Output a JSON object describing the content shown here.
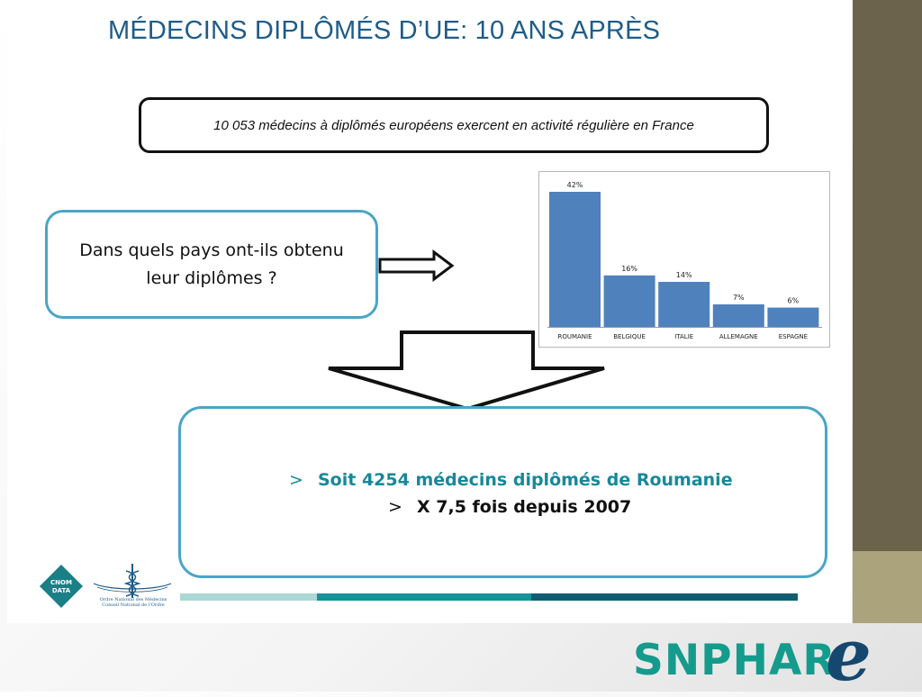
{
  "slide": {
    "title": "MÉDECINS DIPLÔMÉS D’UE: 10 ANS APRÈS",
    "info_box": "10 053 médecins à diplômés européens exercent en activité régulière en France",
    "question": "Dans quels pays ont-ils obtenu leur diplômes ?",
    "result": {
      "line1_bullet": ">",
      "line1_text": "Soit 4254 médecins diplômés de Roumanie",
      "line2_bullet": ">",
      "line2_text": "X 7,5 fois depuis 2007"
    },
    "footer": {
      "cnom_logo_text": [
        "CNOM",
        "DATA"
      ],
      "ordre_text": [
        "Ordre National des Médecins",
        "Conseil National de l'Ordre"
      ],
      "snphar_logo_text": "SNPHAR",
      "snphar_logo_letter": "e"
    }
  },
  "colors": {
    "title": "#1d5c8a",
    "bar": "#4f81bd",
    "box_border": "#4aa5c7",
    "result_text": "#17889a",
    "sidebar_dark": "#6b634c",
    "sidebar_light": "#aaa37b",
    "snphar_green": "#149b8c",
    "snphar_blue": "#15476f"
  },
  "chart_data": {
    "type": "bar",
    "categories": [
      "ROUMANIE",
      "BELGIQUE",
      "ITALIE",
      "ALLEMAGNE",
      "ESPAGNE"
    ],
    "values": [
      42,
      16,
      14,
      7,
      6
    ],
    "data_labels": [
      "42%",
      "16%",
      "14%",
      "7%",
      "6%"
    ],
    "ylim": [
      0,
      42
    ],
    "grid": false,
    "legend": "none"
  }
}
